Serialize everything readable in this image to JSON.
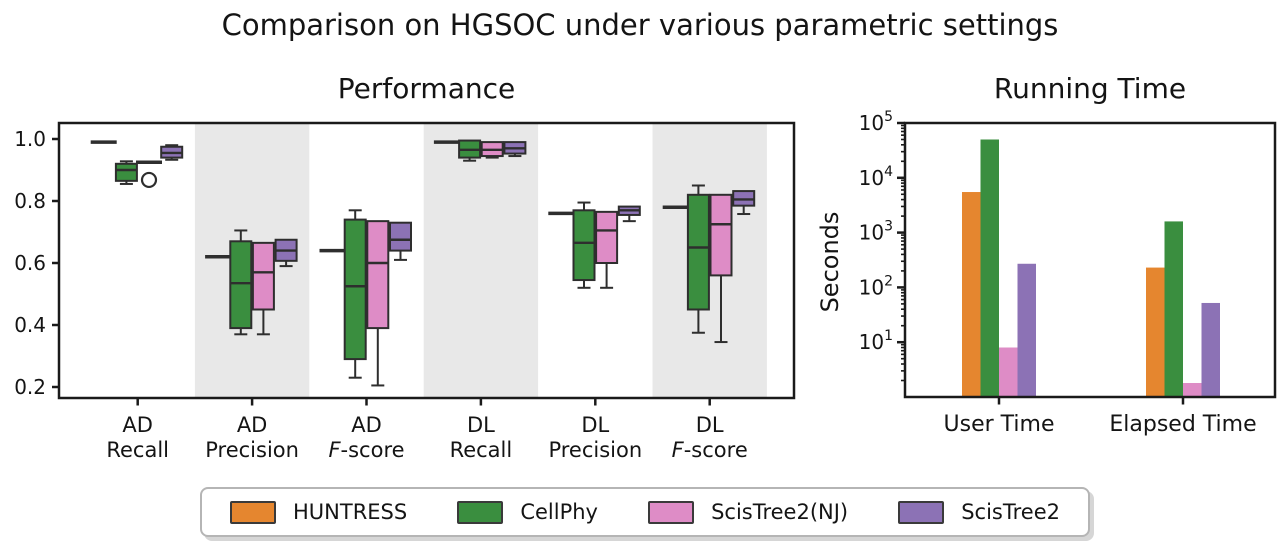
{
  "title": "Comparison on HGSOC under various parametric settings",
  "palette": {
    "orange": "#E5862F",
    "green": "#3A8E3F",
    "pink": "#DE8CC6",
    "purple": "#8C72B5",
    "edge": "#2E2E2E",
    "band": "#E8E8E8",
    "axis": "#1A1A1A"
  },
  "legend": {
    "items": [
      {
        "label": "HUNTRESS",
        "color": "#E5862F"
      },
      {
        "label": "CellPhy",
        "color": "#3A8E3F"
      },
      {
        "label": "ScisTree2(NJ)",
        "color": "#DE8CC6"
      },
      {
        "label": "ScisTree2",
        "color": "#8C72B5"
      }
    ]
  },
  "chart_data": [
    {
      "type": "box",
      "title": "Performance",
      "categories": [
        "AD\nRecall",
        "AD\nPrecision",
        "AD\nF-score",
        "DL\nRecall",
        "DL\nPrecision",
        "DL\nF-score"
      ],
      "yticks": [
        1.0,
        0.8,
        0.6,
        0.4,
        0.2
      ],
      "ylim": [
        0.165,
        1.052
      ],
      "shaded_groups": [
        1,
        3,
        5
      ],
      "grid": false,
      "series": [
        {
          "name": "HUNTRESS",
          "color": "#E5862F",
          "boxes": [
            {
              "flat": 0.99
            },
            {
              "flat": 0.62
            },
            {
              "flat": 0.64
            },
            {
              "flat": 0.99
            },
            {
              "flat": 0.76
            },
            {
              "flat": 0.78
            }
          ]
        },
        {
          "name": "CellPhy",
          "color": "#3A8E3F",
          "boxes": [
            {
              "whislo": 0.855,
              "q1": 0.865,
              "med": 0.9,
              "q3": 0.92,
              "whishi": 0.928
            },
            {
              "whislo": 0.37,
              "q1": 0.39,
              "med": 0.535,
              "q3": 0.67,
              "whishi": 0.705
            },
            {
              "whislo": 0.23,
              "q1": 0.29,
              "med": 0.525,
              "q3": 0.74,
              "whishi": 0.77
            },
            {
              "whislo": 0.93,
              "q1": 0.94,
              "med": 0.965,
              "q3": 0.995,
              "whishi": 0.995
            },
            {
              "whislo": 0.52,
              "q1": 0.545,
              "med": 0.665,
              "q3": 0.77,
              "whishi": 0.795
            },
            {
              "whislo": 0.375,
              "q1": 0.45,
              "med": 0.65,
              "q3": 0.82,
              "whishi": 0.85
            }
          ]
        },
        {
          "name": "ScisTree2(NJ)",
          "color": "#DE8CC6",
          "boxes": [
            {
              "flat": 0.925,
              "fliers": [
                0.868
              ]
            },
            {
              "whislo": 0.37,
              "q1": 0.45,
              "med": 0.57,
              "q3": 0.665,
              "whishi": 0.665
            },
            {
              "whislo": 0.205,
              "q1": 0.39,
              "med": 0.6,
              "q3": 0.735,
              "whishi": 0.735
            },
            {
              "whislo": 0.94,
              "q1": 0.945,
              "med": 0.965,
              "q3": 0.99,
              "whishi": 0.99
            },
            {
              "whislo": 0.52,
              "q1": 0.6,
              "med": 0.705,
              "q3": 0.765,
              "whishi": 0.765
            },
            {
              "whislo": 0.345,
              "q1": 0.56,
              "med": 0.725,
              "q3": 0.82,
              "whishi": 0.82
            }
          ]
        },
        {
          "name": "ScisTree2",
          "color": "#8C72B5",
          "boxes": [
            {
              "whislo": 0.933,
              "q1": 0.94,
              "med": 0.955,
              "q3": 0.975,
              "whishi": 0.98
            },
            {
              "whislo": 0.59,
              "q1": 0.607,
              "med": 0.64,
              "q3": 0.675,
              "whishi": 0.675
            },
            {
              "whislo": 0.61,
              "q1": 0.64,
              "med": 0.675,
              "q3": 0.73,
              "whishi": 0.73
            },
            {
              "whislo": 0.945,
              "q1": 0.953,
              "med": 0.97,
              "q3": 0.99,
              "whishi": 0.99
            },
            {
              "whislo": 0.735,
              "q1": 0.755,
              "med": 0.77,
              "q3": 0.782,
              "whishi": 0.782
            },
            {
              "whislo": 0.758,
              "q1": 0.785,
              "med": 0.805,
              "q3": 0.832,
              "whishi": 0.832
            }
          ]
        }
      ]
    },
    {
      "type": "bar",
      "title": "Running Time",
      "ylabel": "Seconds",
      "yscale": "log",
      "ylim": [
        1,
        100000
      ],
      "yticks_exponents": [
        1,
        2,
        3,
        4,
        5
      ],
      "categories": [
        "User Time",
        "Elapsed Time"
      ],
      "grid": false,
      "series": [
        {
          "name": "HUNTRESS",
          "color": "#E5862F",
          "values": [
            5500,
            230
          ]
        },
        {
          "name": "CellPhy",
          "color": "#3A8E3F",
          "values": [
            50000,
            1600
          ]
        },
        {
          "name": "ScisTree2(NJ)",
          "color": "#DE8CC6",
          "values": [
            8,
            1.8
          ]
        },
        {
          "name": "ScisTree2",
          "color": "#8C72B5",
          "values": [
            270,
            52
          ]
        }
      ]
    }
  ]
}
